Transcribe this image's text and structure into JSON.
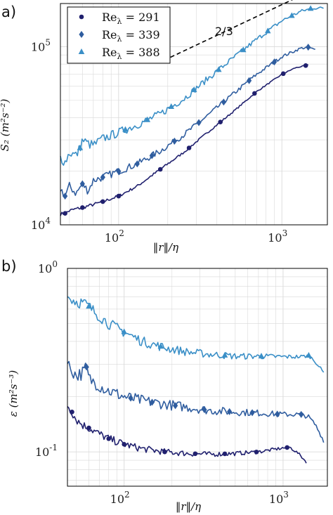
{
  "colors": {
    "Re291": "#20206e",
    "Re339": "#2f5d9f",
    "Re388": "#3a8fc7",
    "grid": "#d9d9d9",
    "axis": "#000000"
  },
  "panel_labels": {
    "a": "a)",
    "b": "b)"
  },
  "chart_data": [
    {
      "type": "line",
      "panel": "a)",
      "log_x": true,
      "log_y": true,
      "grid": true,
      "xlim": [
        44,
        1900
      ],
      "ylim": [
        10000,
        175000
      ],
      "xlabel_tex": "‖r‖/η",
      "ylabel_tex": "S̃₂ (m²s⁻²)",
      "xticks": [
        {
          "v": 100,
          "base": "10",
          "exp": "2"
        },
        {
          "v": 1000,
          "base": "10",
          "exp": "3"
        }
      ],
      "yticks": [
        {
          "v": 10000,
          "base": "10",
          "exp": "4"
        },
        {
          "v": 100000,
          "base": "10",
          "exp": "5"
        }
      ],
      "legend": {
        "placement": "top-left",
        "entries": [
          {
            "label": "Re",
            "sub": "λ",
            "value": "= 291",
            "marker": "circle",
            "color_key": "Re291"
          },
          {
            "label": "Re",
            "sub": "λ",
            "value": "= 339",
            "marker": "diamond",
            "color_key": "Re339"
          },
          {
            "label": "Re",
            "sub": "λ",
            "value": "= 388",
            "marker": "triangle",
            "color_key": "Re388"
          }
        ]
      },
      "slope_annotation": {
        "label": "2/3",
        "x": [
          190,
          1250
        ],
        "y": [
          84000,
          190000
        ]
      },
      "series": [
        {
          "color_key": "Re291",
          "marker": "circle",
          "noise": 0.01,
          "x": [
            44,
            47,
            50,
            55,
            60,
            70,
            80,
            100,
            130,
            180,
            250,
            350,
            500,
            700,
            1000,
            1200,
            1450
          ],
          "y": [
            11500,
            11600,
            12000,
            12300,
            12500,
            13000,
            13500,
            14500,
            16500,
            20500,
            25500,
            33000,
            43000,
            56000,
            70000,
            76000,
            79000
          ],
          "marker_x": [
            47,
            60,
            80,
            100,
            180,
            270,
            420,
            680,
            1020,
            1400
          ]
        },
        {
          "color_key": "Re339",
          "marker": "diamond",
          "noise": 0.025,
          "x": [
            44,
            47,
            50,
            55,
            60,
            65,
            70,
            80,
            100,
            130,
            180,
            250,
            350,
            500,
            700,
            1000,
            1300,
            1450,
            1600
          ],
          "y": [
            16000,
            14500,
            16500,
            15000,
            17000,
            15500,
            17800,
            18500,
            20000,
            22000,
            26000,
            32000,
            41000,
            54000,
            70000,
            88000,
            98000,
            99500,
            96000
          ],
          "marker_x": [
            47,
            60,
            80,
            100,
            130,
            160,
            220,
            310,
            440,
            630,
            900,
            1450
          ]
        },
        {
          "color_key": "Re388",
          "marker": "triangle",
          "noise": 0.03,
          "x": [
            44,
            47,
            50,
            55,
            58,
            60,
            65,
            70,
            80,
            100,
            130,
            180,
            250,
            350,
            500,
            700,
            1000,
            1300,
            1550,
            1800
          ],
          "y": [
            24000,
            22500,
            25500,
            24500,
            27000,
            30000,
            28500,
            28000,
            30500,
            33000,
            36500,
            42000,
            51000,
            66000,
            86000,
            110000,
            140000,
            158000,
            165000,
            165000
          ],
          "marker_x": [
            58,
            110,
            150,
            210,
            290,
            410,
            580,
            820,
            1150,
            1500
          ]
        }
      ]
    },
    {
      "type": "line",
      "panel": "b)",
      "log_x": true,
      "log_y": true,
      "grid": true,
      "xlim": [
        44,
        1900
      ],
      "ylim": [
        0.065,
        1.0
      ],
      "xlabel_tex": "‖r‖/η",
      "ylabel_tex": "ε (m²s⁻³)",
      "xticks": [
        {
          "v": 100,
          "base": "10",
          "exp": "2"
        },
        {
          "v": 1000,
          "base": "10",
          "exp": "3"
        }
      ],
      "yticks": [
        {
          "v": 0.1,
          "base": "10",
          "exp": "-1"
        },
        {
          "v": 1.0,
          "base": "10",
          "exp": "0"
        }
      ],
      "series": [
        {
          "color_key": "Re291",
          "marker": "circle",
          "noise": 0.025,
          "x": [
            44,
            47,
            50,
            55,
            60,
            70,
            80,
            100,
            130,
            180,
            250,
            350,
            500,
            700,
            1000,
            1100,
            1250,
            1400
          ],
          "y": [
            0.18,
            0.165,
            0.15,
            0.14,
            0.135,
            0.125,
            0.118,
            0.11,
            0.104,
            0.1,
            0.098,
            0.097,
            0.098,
            0.1,
            0.105,
            0.106,
            0.098,
            0.088
          ],
          "marker_x": [
            47,
            60,
            80,
            100,
            180,
            280,
            430,
            680,
            1060
          ]
        },
        {
          "color_key": "Re339",
          "marker": "diamond",
          "noise": 0.04,
          "x": [
            44,
            47,
            50,
            55,
            58,
            60,
            65,
            70,
            80,
            100,
            130,
            180,
            250,
            350,
            500,
            700,
            1000,
            1300,
            1450,
            1600,
            1800
          ],
          "y": [
            0.3,
            0.28,
            0.26,
            0.27,
            0.29,
            0.25,
            0.24,
            0.23,
            0.215,
            0.2,
            0.19,
            0.182,
            0.175,
            0.168,
            0.165,
            0.163,
            0.16,
            0.16,
            0.155,
            0.14,
            0.115
          ],
          "marker_x": [
            58,
            110,
            150,
            210,
            320,
            460,
            640,
            920,
            1300
          ]
        },
        {
          "color_key": "Re388",
          "marker": "triangle",
          "noise": 0.035,
          "x": [
            44,
            47,
            50,
            55,
            60,
            65,
            70,
            80,
            100,
            130,
            180,
            250,
            350,
            500,
            700,
            1000,
            1300,
            1450,
            1600,
            1800
          ],
          "y": [
            0.7,
            0.68,
            0.66,
            0.65,
            0.62,
            0.58,
            0.55,
            0.5,
            0.45,
            0.4,
            0.37,
            0.35,
            0.34,
            0.332,
            0.332,
            0.33,
            0.33,
            0.335,
            0.31,
            0.27
          ],
          "marker_x": [
            60,
            100,
            170,
            430,
            730,
            1450
          ]
        }
      ]
    }
  ]
}
